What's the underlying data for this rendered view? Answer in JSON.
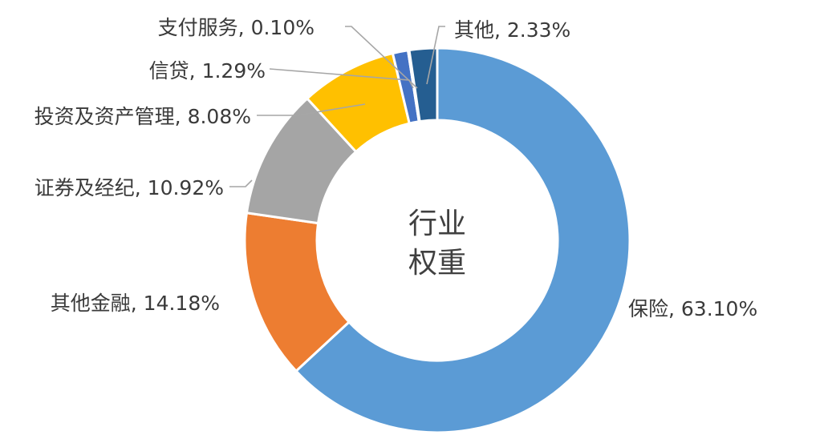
{
  "chart_data": {
    "type": "pie",
    "subtype": "donut",
    "center_label": [
      "行业",
      "权重"
    ],
    "series": [
      {
        "name": "保险",
        "value": 63.1,
        "label": "保险, 63.10%",
        "color": "#5b9bd5"
      },
      {
        "name": "其他金融",
        "value": 14.18,
        "label": "其他金融, 14.18%",
        "color": "#ed7d31"
      },
      {
        "name": "证券及经纪",
        "value": 10.92,
        "label": "证券及经纪, 10.92%",
        "color": "#a5a5a5"
      },
      {
        "name": "投资及资产管理",
        "value": 8.08,
        "label": "投资及资产管理, 8.08%",
        "color": "#ffc000"
      },
      {
        "name": "信贷",
        "value": 1.29,
        "label": "信贷, 1.29%",
        "color": "#4472c4"
      },
      {
        "name": "支付服务",
        "value": 0.1,
        "label": "支付服务, 0.10%",
        "color": "#70ad47"
      },
      {
        "name": "其他",
        "value": 2.33,
        "label": "其他, 2.33%",
        "color": "#255e91"
      }
    ],
    "legend": "none"
  }
}
